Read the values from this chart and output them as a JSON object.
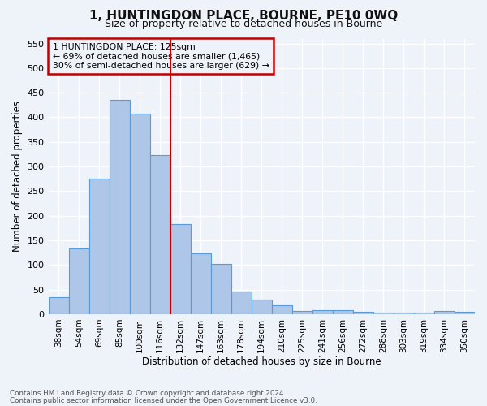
{
  "title1": "1, HUNTINGDON PLACE, BOURNE, PE10 0WQ",
  "title2": "Size of property relative to detached houses in Bourne",
  "xlabel": "Distribution of detached houses by size in Bourne",
  "ylabel": "Number of detached properties",
  "categories": [
    "38sqm",
    "54sqm",
    "69sqm",
    "85sqm",
    "100sqm",
    "116sqm",
    "132sqm",
    "147sqm",
    "163sqm",
    "178sqm",
    "194sqm",
    "210sqm",
    "225sqm",
    "241sqm",
    "256sqm",
    "272sqm",
    "288sqm",
    "303sqm",
    "319sqm",
    "334sqm",
    "350sqm"
  ],
  "values": [
    35,
    133,
    275,
    435,
    407,
    323,
    183,
    124,
    103,
    46,
    30,
    18,
    7,
    9,
    9,
    5,
    4,
    4,
    3,
    7,
    5
  ],
  "bar_color": "#aec6e8",
  "bar_edge_color": "#5b9bd5",
  "vline_x": 5.5,
  "vline_color": "#c00000",
  "annotation_line1": "1 HUNTINGDON PLACE: 125sqm",
  "annotation_line2": "← 69% of detached houses are smaller (1,465)",
  "annotation_line3": "30% of semi-detached houses are larger (629) →",
  "annotation_box_color": "#c00000",
  "ylim": [
    0,
    560
  ],
  "yticks": [
    0,
    50,
    100,
    150,
    200,
    250,
    300,
    350,
    400,
    450,
    500,
    550
  ],
  "footer1": "Contains HM Land Registry data © Crown copyright and database right 2024.",
  "footer2": "Contains public sector information licensed under the Open Government Licence v3.0.",
  "bg_color": "#eef2f9",
  "grid_color": "#ffffff"
}
